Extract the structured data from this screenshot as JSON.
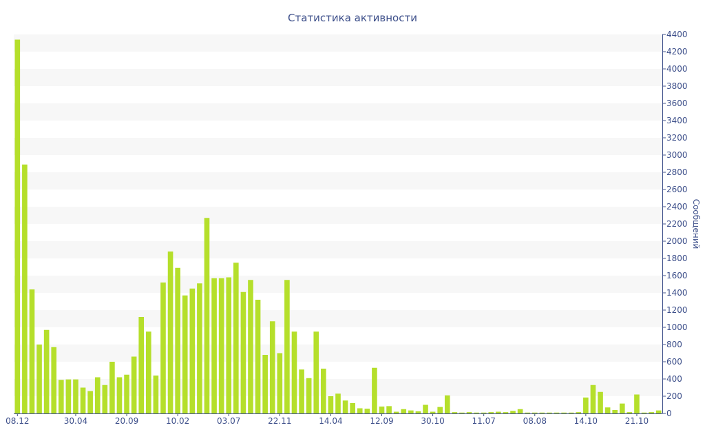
{
  "chart_data": {
    "type": "bar",
    "title": "Статистика активности",
    "ylabel": "Сообщений",
    "xlabel": "",
    "ylim": [
      0,
      4400
    ],
    "y_ticks": [
      0,
      200,
      400,
      600,
      800,
      1000,
      1200,
      1400,
      1600,
      1800,
      2000,
      2200,
      2400,
      2600,
      2800,
      3000,
      3200,
      3400,
      3600,
      3800,
      4000,
      4200,
      4400
    ],
    "x_tick_labels": [
      {
        "index": 0,
        "label": "08.12"
      },
      {
        "index": 8,
        "label": "30.04"
      },
      {
        "index": 15,
        "label": "20.09"
      },
      {
        "index": 22,
        "label": "10.02"
      },
      {
        "index": 29,
        "label": "03.07"
      },
      {
        "index": 36,
        "label": "22.11"
      },
      {
        "index": 43,
        "label": "14.04"
      },
      {
        "index": 50,
        "label": "12.09"
      },
      {
        "index": 57,
        "label": "30.10"
      },
      {
        "index": 64,
        "label": "11.07"
      },
      {
        "index": 71,
        "label": "08.08"
      },
      {
        "index": 78,
        "label": "14.10"
      },
      {
        "index": 85,
        "label": "21.10"
      }
    ],
    "values": [
      4340,
      2890,
      1440,
      800,
      970,
      770,
      390,
      395,
      395,
      300,
      260,
      420,
      330,
      600,
      420,
      450,
      660,
      1120,
      950,
      440,
      1520,
      1880,
      1690,
      1370,
      1450,
      1510,
      2270,
      1570,
      1570,
      1580,
      1750,
      1410,
      1550,
      1320,
      680,
      1070,
      700,
      1550,
      950,
      510,
      410,
      950,
      520,
      200,
      230,
      150,
      120,
      60,
      55,
      530,
      80,
      85,
      20,
      50,
      35,
      25,
      100,
      20,
      75,
      210,
      15,
      10,
      15,
      10,
      10,
      15,
      20,
      15,
      30,
      50,
      10,
      10,
      10,
      10,
      10,
      10,
      10,
      15,
      185,
      330,
      250,
      70,
      40,
      115,
      15,
      220,
      10,
      15,
      35
    ],
    "series": [
      {
        "name": "Сообщений"
      }
    ],
    "grid": true,
    "colors": {
      "bar": "#b5df2b",
      "axis": "#3d4f8a",
      "band_light": "#f7f7f7",
      "band_white": "#ffffff"
    }
  }
}
